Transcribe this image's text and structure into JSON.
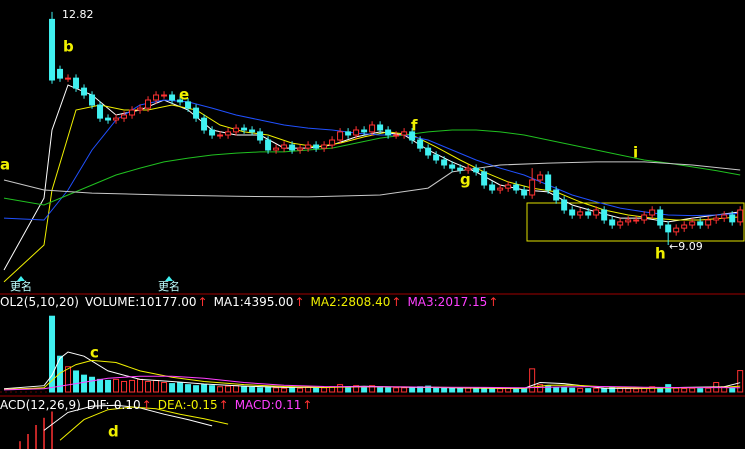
{
  "chart_data": {
    "type": "candlestick",
    "xlim": [
      -6.5,
      86.6
    ],
    "ylim": [
      8.37,
      13.01
    ],
    "colors": {
      "up": "#ff3232",
      "down": "#40f0f0"
    },
    "open": [
      12.7,
      11.9,
      11.76,
      11.76,
      11.6,
      11.49,
      11.33,
      11.12,
      11.09,
      11.12,
      11.17,
      11.25,
      11.28,
      11.41,
      11.49,
      11.49,
      11.41,
      11.38,
      11.28,
      11.12,
      10.93,
      10.85,
      10.85,
      10.9,
      10.96,
      10.93,
      10.9,
      10.77,
      10.61,
      10.64,
      10.69,
      10.61,
      10.64,
      10.69,
      10.64,
      10.69,
      10.77,
      10.9,
      10.85,
      10.93,
      10.9,
      11.01,
      10.93,
      10.85,
      10.85,
      10.9,
      10.77,
      10.64,
      10.53,
      10.45,
      10.37,
      10.32,
      10.29,
      10.32,
      10.26,
      10.05,
      9.97,
      10.0,
      10.05,
      9.97,
      9.89,
      10.13,
      10.21,
      9.97,
      9.81,
      9.65,
      9.57,
      9.62,
      9.57,
      9.65,
      9.49,
      9.41,
      9.46,
      9.49,
      9.49,
      9.57,
      9.65,
      9.41,
      9.3,
      9.36,
      9.41,
      9.46,
      9.41,
      9.49,
      9.52,
      9.57,
      9.46
    ],
    "high": [
      12.82,
      11.96,
      11.82,
      11.82,
      11.66,
      11.55,
      11.39,
      11.18,
      11.18,
      11.23,
      11.31,
      11.34,
      11.47,
      11.55,
      11.55,
      11.55,
      11.47,
      11.44,
      11.34,
      11.18,
      10.99,
      10.91,
      10.96,
      11.02,
      11.02,
      10.99,
      10.96,
      10.83,
      10.7,
      10.75,
      10.75,
      10.7,
      10.75,
      10.75,
      10.75,
      10.83,
      10.96,
      10.96,
      10.99,
      10.99,
      11.07,
      11.07,
      10.99,
      10.91,
      10.96,
      10.96,
      10.83,
      10.7,
      10.59,
      10.51,
      10.43,
      10.38,
      10.38,
      10.38,
      10.32,
      10.11,
      10.06,
      10.11,
      10.11,
      10.03,
      10.32,
      10.27,
      10.27,
      10.03,
      9.87,
      9.71,
      9.68,
      9.68,
      9.71,
      9.71,
      9.55,
      9.52,
      9.55,
      9.55,
      9.63,
      9.71,
      9.71,
      9.47,
      9.42,
      9.47,
      9.52,
      9.52,
      9.55,
      9.58,
      9.63,
      9.63,
      9.71
    ],
    "low": [
      11.67,
      11.7,
      11.7,
      11.54,
      11.43,
      11.27,
      11.06,
      11.03,
      11.03,
      11.06,
      11.11,
      11.19,
      11.22,
      11.35,
      11.43,
      11.35,
      11.32,
      11.22,
      11.06,
      10.87,
      10.79,
      10.79,
      10.79,
      10.84,
      10.87,
      10.84,
      10.71,
      10.55,
      10.55,
      10.58,
      10.55,
      10.55,
      10.58,
      10.58,
      10.58,
      10.63,
      10.71,
      10.79,
      10.79,
      10.84,
      10.84,
      10.87,
      10.79,
      10.79,
      10.79,
      10.71,
      10.58,
      10.47,
      10.39,
      10.31,
      10.26,
      10.23,
      10.23,
      10.2,
      9.99,
      9.91,
      9.91,
      9.94,
      9.91,
      9.83,
      9.83,
      10.07,
      9.91,
      9.75,
      9.59,
      9.51,
      9.51,
      9.51,
      9.51,
      9.43,
      9.35,
      9.35,
      9.4,
      9.43,
      9.43,
      9.51,
      9.35,
      9.09,
      9.24,
      9.3,
      9.35,
      9.35,
      9.35,
      9.43,
      9.46,
      9.4,
      9.4
    ],
    "close": [
      11.73,
      11.76,
      11.76,
      11.6,
      11.49,
      11.33,
      11.12,
      11.09,
      11.12,
      11.17,
      11.25,
      11.28,
      11.41,
      11.49,
      11.49,
      11.41,
      11.38,
      11.28,
      11.12,
      10.93,
      10.85,
      10.85,
      10.9,
      10.96,
      10.93,
      10.9,
      10.77,
      10.61,
      10.64,
      10.69,
      10.61,
      10.64,
      10.69,
      10.64,
      10.69,
      10.77,
      10.9,
      10.85,
      10.93,
      10.9,
      11.01,
      10.93,
      10.85,
      10.85,
      10.9,
      10.77,
      10.64,
      10.53,
      10.45,
      10.37,
      10.32,
      10.29,
      10.32,
      10.26,
      10.05,
      9.97,
      10.0,
      10.05,
      9.97,
      9.89,
      10.13,
      10.21,
      9.97,
      9.81,
      9.65,
      9.57,
      9.62,
      9.57,
      9.65,
      9.49,
      9.41,
      9.46,
      9.49,
      9.49,
      9.57,
      9.65,
      9.41,
      9.3,
      9.36,
      9.41,
      9.46,
      9.41,
      9.49,
      9.52,
      9.57,
      9.46,
      9.65
    ],
    "ma_lines": [
      {
        "color": "#ffffff",
        "x": [
          -6,
          -1,
          0,
          2,
          5,
          8,
          11,
          14,
          17,
          20,
          23,
          26,
          29,
          32,
          35,
          38,
          41,
          44,
          47,
          50,
          53,
          56,
          59,
          62,
          65,
          68,
          71,
          74,
          77,
          80,
          83,
          86
        ],
        "values": [
          8.69,
          9.84,
          10.93,
          11.65,
          11.49,
          11.17,
          11.25,
          11.41,
          11.25,
          10.93,
          10.85,
          10.85,
          10.64,
          10.64,
          10.69,
          10.82,
          10.9,
          10.85,
          10.61,
          10.42,
          10.26,
          10.05,
          9.97,
          9.94,
          9.73,
          9.62,
          9.52,
          9.52,
          9.46,
          9.52,
          9.57,
          9.62
        ]
      },
      {
        "color": "#f0f000",
        "x": [
          -6,
          -1,
          0,
          3,
          6,
          9,
          12,
          15,
          18,
          21,
          24,
          27,
          30,
          33,
          36,
          39,
          42,
          45,
          48,
          51,
          54,
          57,
          60,
          63,
          66,
          69,
          72,
          75,
          78,
          81,
          84,
          86
        ],
        "values": [
          8.5,
          9.09,
          9.97,
          11.25,
          11.33,
          11.25,
          11.25,
          11.33,
          11.25,
          11.01,
          10.9,
          10.85,
          10.72,
          10.66,
          10.72,
          10.82,
          10.9,
          10.85,
          10.66,
          10.45,
          10.26,
          10.1,
          10.0,
          9.94,
          9.78,
          9.65,
          9.57,
          9.52,
          9.49,
          9.49,
          9.52,
          9.54
        ]
      },
      {
        "color": "#2050ff",
        "x": [
          -6,
          -1,
          2,
          5,
          8,
          11,
          14,
          17,
          20,
          23,
          26,
          29,
          32,
          35,
          38,
          41,
          44,
          47,
          50,
          53,
          56,
          59,
          62,
          65,
          68,
          71,
          74,
          77,
          80,
          83,
          86
        ],
        "values": [
          9.52,
          9.49,
          9.97,
          10.61,
          11.09,
          11.33,
          11.41,
          11.38,
          11.28,
          11.17,
          11.09,
          11.01,
          10.96,
          10.93,
          10.88,
          10.85,
          10.85,
          10.77,
          10.61,
          10.45,
          10.32,
          10.21,
          10.05,
          9.89,
          9.78,
          9.68,
          9.62,
          9.57,
          9.56,
          9.57,
          9.6
        ]
      },
      {
        "color": "#20c020",
        "x": [
          -6,
          -1,
          2,
          5,
          8,
          11,
          14,
          17,
          20,
          23,
          26,
          29,
          32,
          35,
          38,
          41,
          44,
          47,
          50,
          53,
          56,
          59,
          62,
          65,
          68,
          71,
          74,
          77,
          80,
          83,
          86
        ],
        "values": [
          9.84,
          9.73,
          9.89,
          10.05,
          10.21,
          10.32,
          10.42,
          10.48,
          10.53,
          10.56,
          10.58,
          10.58,
          10.61,
          10.64,
          10.72,
          10.8,
          10.85,
          10.9,
          10.93,
          10.93,
          10.9,
          10.85,
          10.77,
          10.69,
          10.61,
          10.53,
          10.45,
          10.4,
          10.34,
          10.28,
          10.21
        ]
      },
      {
        "color": "#c8c8c8",
        "x": [
          -6,
          -1,
          5,
          14,
          23,
          32,
          41,
          47,
          50,
          56,
          62,
          68,
          74,
          80,
          86
        ],
        "values": [
          10.13,
          9.97,
          9.92,
          9.89,
          9.87,
          9.86,
          9.89,
          10.0,
          10.26,
          10.37,
          10.4,
          10.42,
          10.42,
          10.37,
          10.29
        ]
      }
    ],
    "high_label": "12.82",
    "low_label": "←9.09",
    "annotations": [
      "a",
      "b",
      "c",
      "d",
      "e",
      "f",
      "g",
      "h",
      "i"
    ],
    "rename_labels": [
      "更名",
      "更名"
    ],
    "volume": {
      "type": "bar",
      "ylim": [
        0,
        38000
      ],
      "values": [
        36000,
        17000,
        12000,
        10000,
        8000,
        7000,
        6000,
        5500,
        6000,
        5000,
        5500,
        6000,
        5000,
        5500,
        4500,
        4000,
        4500,
        3500,
        3000,
        3500,
        3000,
        2500,
        2800,
        3000,
        2500,
        2200,
        2000,
        2500,
        2000,
        1800,
        2000,
        1800,
        2200,
        1800,
        2000,
        2500,
        3500,
        2500,
        3000,
        2500,
        3000,
        2500,
        2200,
        2000,
        2000,
        2200,
        2500,
        2800,
        2200,
        2000,
        1800,
        1700,
        1800,
        1600,
        2000,
        1800,
        1600,
        1800,
        1500,
        1700,
        11000,
        3500,
        3000,
        2000,
        2200,
        1800,
        1700,
        1600,
        1800,
        1700,
        2000,
        1800,
        1600,
        1500,
        1800,
        2500,
        2000,
        3500,
        1800,
        1700,
        1800,
        1600,
        1800,
        4500,
        2500,
        2000,
        10177
      ],
      "header": [
        {
          "text": "OL2(5,10,20)",
          "color": "#ffffff"
        },
        {
          "text": "VOLUME:10177.00",
          "color": "#ffffff"
        },
        {
          "text": "↑",
          "color": "#ff3232"
        },
        {
          "text": "MA1:4395.00",
          "color": "#ffffff"
        },
        {
          "text": "↑",
          "color": "#ff3232"
        },
        {
          "text": "MA2:2808.40",
          "color": "#f0f000"
        },
        {
          "text": "↑",
          "color": "#ff3232"
        },
        {
          "text": "MA3:2017.15",
          "color": "#ff40ff"
        },
        {
          "text": "↑",
          "color": "#ff3232"
        }
      ],
      "ma_lines": [
        {
          "color": "#ffffff",
          "x": [
            -6,
            -1,
            0,
            1,
            2,
            4,
            7,
            11,
            15,
            19,
            24,
            29,
            34,
            39,
            44,
            49,
            54,
            59,
            61,
            64,
            69,
            74,
            79,
            84,
            86
          ],
          "values": [
            1500,
            3000,
            8000,
            16000,
            19000,
            17000,
            10000,
            6000,
            5000,
            3800,
            2800,
            2200,
            2200,
            2700,
            2300,
            2100,
            1800,
            1700,
            4500,
            4000,
            1800,
            1700,
            2200,
            2500,
            4395
          ]
        },
        {
          "color": "#f0f000",
          "x": [
            -6,
            -1,
            1,
            3,
            5,
            8,
            11,
            15,
            19,
            24,
            29,
            34,
            39,
            44,
            49,
            54,
            59,
            62,
            65,
            69,
            74,
            79,
            84,
            86
          ],
          "values": [
            1200,
            2000,
            9000,
            13000,
            15000,
            14000,
            10000,
            7000,
            5000,
            3500,
            2600,
            2200,
            2400,
            2400,
            2200,
            1900,
            1800,
            3200,
            3300,
            2500,
            1800,
            2000,
            2300,
            2808.4
          ]
        },
        {
          "color": "#ff40ff",
          "x": [
            -6,
            -1,
            3,
            7,
            11,
            15,
            19,
            24,
            29,
            34,
            39,
            44,
            49,
            54,
            59,
            64,
            69,
            74,
            79,
            84,
            86
          ],
          "values": [
            1000,
            1500,
            4000,
            6500,
            7500,
            7500,
            6500,
            4500,
            3200,
            2600,
            2500,
            2400,
            2300,
            2200,
            2000,
            2400,
            2600,
            2300,
            2100,
            2100,
            2017.15
          ]
        }
      ]
    },
    "macd": {
      "type": "bar",
      "ylim": [
        0,
        0.6
      ],
      "x": [
        -4,
        -3,
        -2,
        -1,
        0
      ],
      "values": [
        0.12,
        0.2,
        0.3,
        0.38,
        0.45
      ],
      "color": "#ff3232",
      "header": [
        {
          "text": "ACD(12,26,9)",
          "color": "#ffffff"
        },
        {
          "text": "DIF:-0.10",
          "color": "#ffffff"
        },
        {
          "text": "↑",
          "color": "#ff3232"
        },
        {
          "text": "DEA:-0.15",
          "color": "#f0f000"
        },
        {
          "text": "↑",
          "color": "#ff3232"
        },
        {
          "text": "MACD:0.11",
          "color": "#ff40ff"
        },
        {
          "text": "↑",
          "color": "#ff3232"
        }
      ],
      "lines": [
        {
          "color": "#ffffff",
          "x": [
            -1,
            2,
            5,
            8,
            11,
            14,
            17,
            20
          ],
          "values": [
            0.24,
            0.44,
            0.51,
            0.52,
            0.49,
            0.42,
            0.36,
            0.29
          ]
        },
        {
          "color": "#f0f000",
          "x": [
            1,
            4,
            7,
            10,
            13,
            16,
            19,
            22
          ],
          "values": [
            0.13,
            0.36,
            0.47,
            0.5,
            0.48,
            0.42,
            0.37,
            0.31
          ]
        }
      ]
    }
  }
}
